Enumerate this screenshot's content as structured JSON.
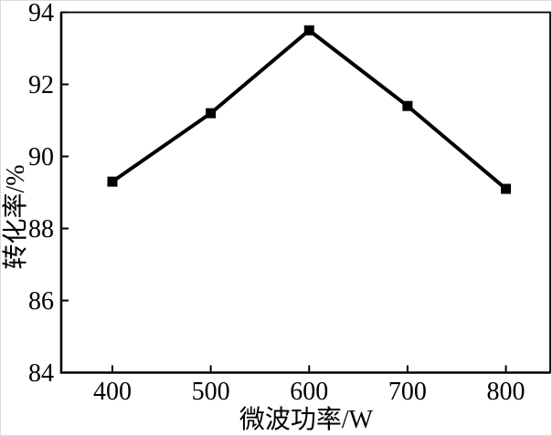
{
  "figure": {
    "background": "#ffffff",
    "axis_color": "#000000",
    "text_color": "#000000"
  },
  "chart_data": {
    "type": "line",
    "title": "",
    "xlabel": "微波功率/W",
    "ylabel": "转化率/%",
    "x": [
      400,
      500,
      600,
      700,
      800
    ],
    "series": [
      {
        "name": "转化率",
        "values": [
          89.3,
          91.2,
          93.5,
          91.4,
          89.1
        ],
        "color": "#000000",
        "marker": "square",
        "line_width": 4,
        "marker_size": 11
      }
    ],
    "xlim": [
      348,
      845
    ],
    "ylim": [
      84,
      94
    ],
    "x_ticks": [
      400,
      500,
      600,
      700,
      800
    ],
    "y_ticks": [
      84,
      86,
      88,
      90,
      92,
      94
    ],
    "grid": false,
    "legend_position": "none"
  }
}
